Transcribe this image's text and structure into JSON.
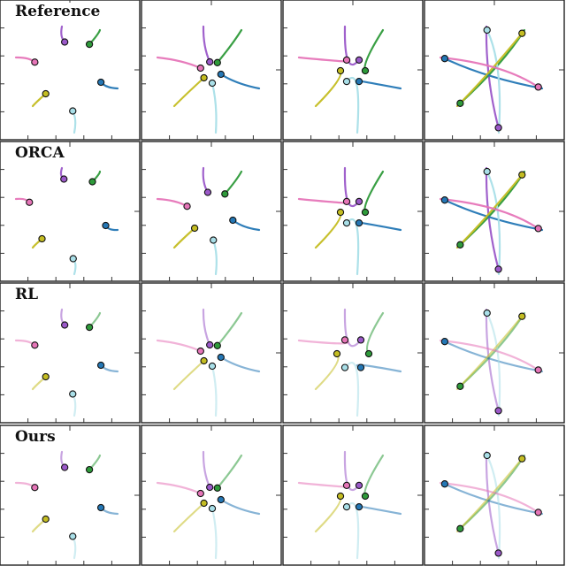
{
  "rows": [
    {
      "label": "Reference"
    },
    {
      "label": "ORCA"
    },
    {
      "label": "RL"
    },
    {
      "label": "Ours"
    }
  ],
  "agents": [
    {
      "color": "#9b59c9"
    },
    {
      "color": "#2e9a3a"
    },
    {
      "color": "#2477b5"
    },
    {
      "color": "#a9dfe8"
    },
    {
      "color": "#c4bd22"
    },
    {
      "color": "#e675b8"
    }
  ],
  "panel_style": {
    "background": "#ffffff",
    "frame": "#222222"
  }
}
